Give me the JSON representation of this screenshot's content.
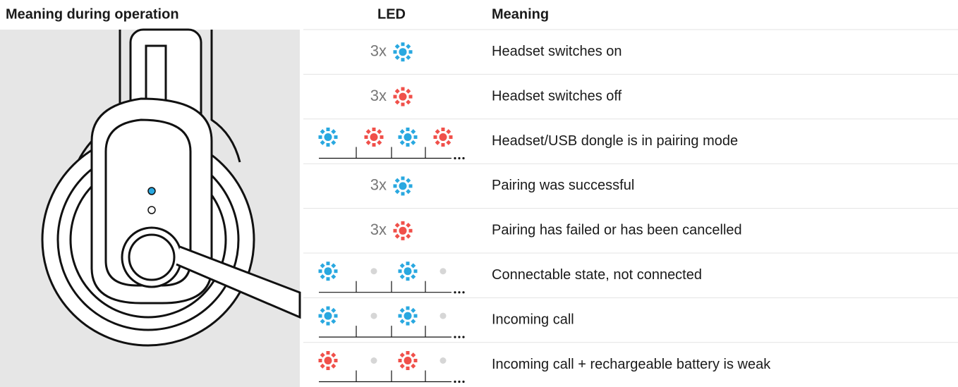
{
  "header": {
    "title": "Meaning during operation",
    "led": "LED",
    "meaning": "Meaning"
  },
  "rows": [
    {
      "led": "3x",
      "meaning": "Headset switches on"
    },
    {
      "led": "3x",
      "meaning": "Headset switches off"
    },
    {
      "meaning": "Headset/USB dongle is in pairing mode"
    },
    {
      "led": "3x",
      "meaning": "Pairing was successful"
    },
    {
      "led": "3x",
      "meaning": "Pairing has failed or has been cancelled"
    },
    {
      "meaning": "Connectable state, not connected"
    },
    {
      "meaning": "Incoming call"
    },
    {
      "meaning": "Incoming call + rechargeable battery is weak"
    }
  ]
}
